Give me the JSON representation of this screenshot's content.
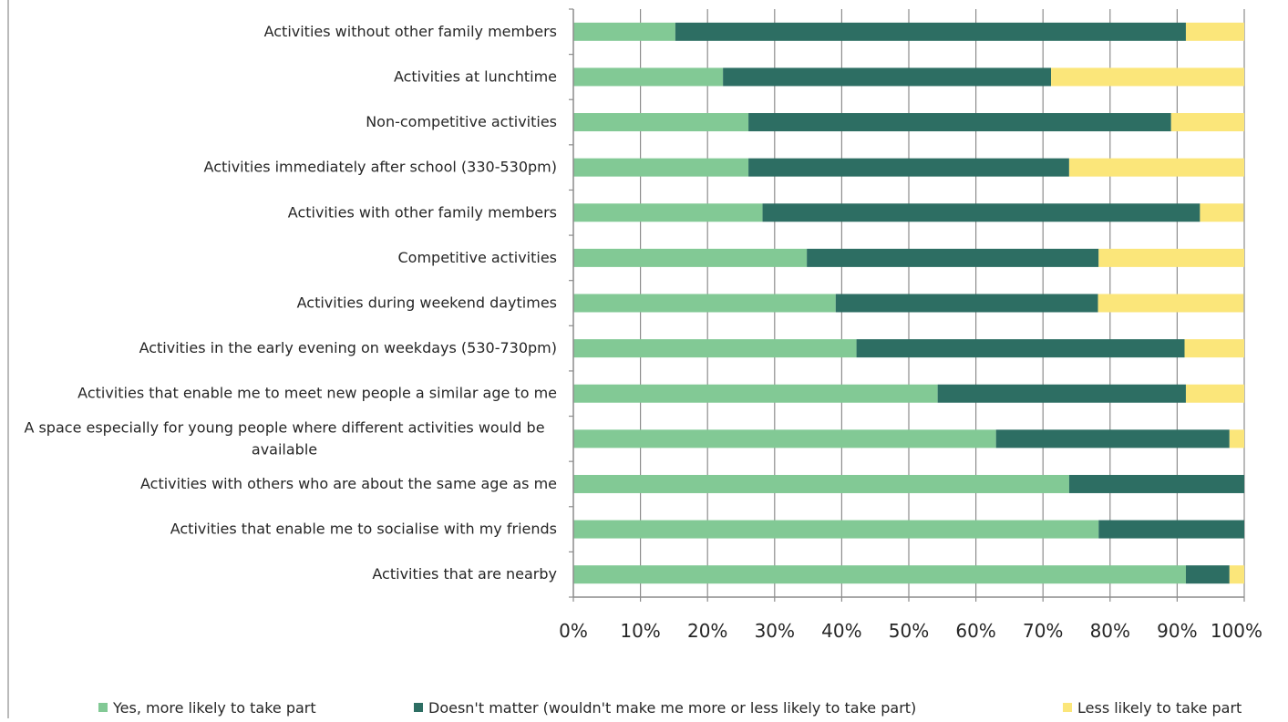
{
  "chart_data": {
    "type": "bar",
    "orientation": "horizontal",
    "stacked": "percent",
    "categories": [
      "Activities without other family members",
      "Activities at lunchtime",
      "Non-competitive activities",
      "Activities immediately after school (330-530pm)",
      "Activities with other family members",
      "Competitive activities",
      "Activities during weekend daytimes",
      "Activities in the early evening on weekdays (530-730pm)",
      "Activities that enable me to meet new people a similar age to me",
      "A space especially for young people where different activities would be available",
      "Activities with others who are about the same age as me",
      "Activities that enable me to socialise with my friends",
      "Activities that are nearby"
    ],
    "series": [
      {
        "name": "Yes, more likely to take part",
        "color": "#82c995",
        "values": [
          15.2,
          22.3,
          26.1,
          26.1,
          28.2,
          34.8,
          39.1,
          42.2,
          54.3,
          63.0,
          73.9,
          78.3,
          91.3
        ]
      },
      {
        "name": "Doesn't matter (wouldn't make me more or less likely to take part)",
        "color": "#2d6e63",
        "values": [
          76.1,
          48.9,
          63.0,
          47.8,
          65.2,
          43.5,
          39.1,
          48.9,
          37.0,
          34.8,
          26.1,
          21.7,
          6.5
        ]
      },
      {
        "name": "Less likely to take part",
        "color": "#fbe67a",
        "values": [
          8.7,
          28.8,
          10.9,
          26.1,
          6.5,
          21.7,
          21.7,
          8.9,
          8.7,
          2.2,
          0.0,
          0.0,
          2.2
        ]
      }
    ],
    "xlim": [
      0,
      100
    ],
    "xticks": [
      "0%",
      "10%",
      "20%",
      "30%",
      "40%",
      "50%",
      "60%",
      "70%",
      "80%",
      "90%",
      "100%"
    ],
    "grid": "vertical",
    "legend_position": "bottom"
  }
}
